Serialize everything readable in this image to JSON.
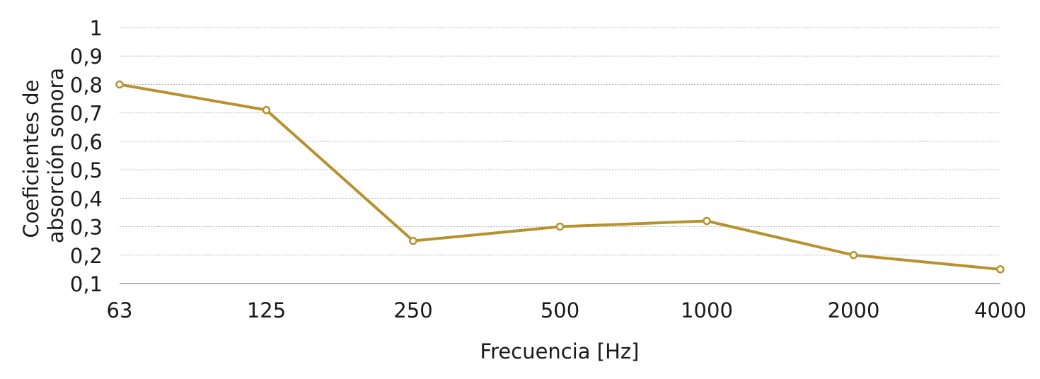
{
  "chart_data": {
    "type": "line",
    "title": "",
    "xlabel": "Frecuencia [Hz]",
    "ylabel_lines": [
      "Coeficientes de",
      "absorción sonora"
    ],
    "categories": [
      "63",
      "125",
      "250",
      "500",
      "1000",
      "2000",
      "4000"
    ],
    "series": [
      {
        "values": [
          0.8,
          0.71,
          0.25,
          0.3,
          0.32,
          0.2,
          0.15
        ],
        "color": "#B8922E"
      }
    ],
    "ylim": [
      0.1,
      1.0
    ],
    "yticks": [
      {
        "value": 1.0,
        "label": "1"
      },
      {
        "value": 0.9,
        "label": "0,9"
      },
      {
        "value": 0.8,
        "label": "0,8"
      },
      {
        "value": 0.7,
        "label": "0,7"
      },
      {
        "value": 0.6,
        "label": "0,6"
      },
      {
        "value": 0.5,
        "label": "0,5"
      },
      {
        "value": 0.4,
        "label": "0,4"
      },
      {
        "value": 0.3,
        "label": "0,3"
      },
      {
        "value": 0.2,
        "label": "0,2"
      },
      {
        "value": 0.1,
        "label": "0,1"
      }
    ],
    "grid": true,
    "legend": "none"
  }
}
